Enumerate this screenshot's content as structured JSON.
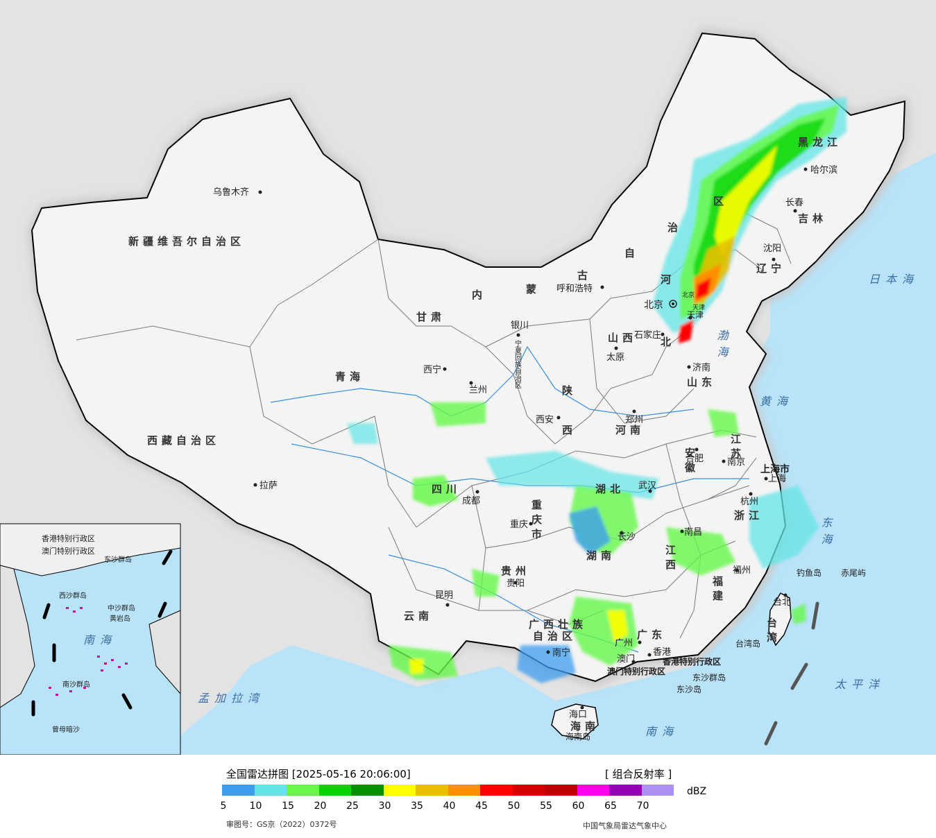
{
  "legend": {
    "title": "全国雷达拼图 [2025-05-16 20:06:00]",
    "product": "[ 组合反射率 ]",
    "unit": "dBZ",
    "review_no": "审图号：GS京（2022）0372号",
    "agency": "中国气象局雷达气象中心",
    "ticks": [
      "5",
      "10",
      "15",
      "20",
      "25",
      "30",
      "35",
      "40",
      "45",
      "50",
      "55",
      "60",
      "65",
      "70"
    ],
    "colors": [
      "#3d9eef",
      "#63e4e6",
      "#67f84a",
      "#08d400",
      "#039001",
      "#fefe00",
      "#e8c000",
      "#fe8f00",
      "#ff0000",
      "#d40000",
      "#bd0000",
      "#fe00f0",
      "#9600b4",
      "#ad90f0"
    ]
  },
  "provinces": {
    "xinjiang": "新疆维吾尔自治区",
    "xizang": "西藏自治区",
    "qinghai": "青海",
    "gansu": "甘肃",
    "neimenggu_1": "内",
    "neimenggu_2": "蒙",
    "neimenggu_3": "古",
    "neimenggu_4": "自",
    "neimenggu_5": "治",
    "neimenggu_6": "区",
    "heilongjiang": "黑龙江",
    "jilin": "吉林",
    "liaoning": "辽宁",
    "hebei_1": "河",
    "hebei_2": "北",
    "beijing": "北京",
    "tianjin": "天津",
    "shanxi": "山西",
    "shaanxi_1": "陕",
    "shaanxi_2": "西",
    "ningxia": "宁夏回族自治区",
    "shandong": "山东",
    "henan": "河南",
    "jiangsu": "江苏",
    "anhui": "安徽",
    "shanghai": "上海市",
    "hubei": "湖北",
    "sichuan": "四川",
    "chongqing": "重庆市",
    "zhejiang": "浙江",
    "jiangxi": "江西",
    "hunan": "湖南",
    "guizhou": "贵州",
    "yunnan": "云南",
    "fujian": "福建",
    "taiwan": "台湾",
    "guangxi_1": "广西壮族",
    "guangxi_2": "自治区",
    "guangdong": "广东",
    "hainan": "海南",
    "hk": "香港特别行政区",
    "macao": "澳门特别行政区"
  },
  "cities": {
    "urumqi": "乌鲁木齐",
    "lhasa": "拉萨",
    "xining": "西宁",
    "lanzhou": "兰州",
    "yinchuan": "银川",
    "hohhot": "呼和浩特",
    "harbin": "哈尔滨",
    "changchun": "长春",
    "shenyang": "沈阳",
    "beijing": "北京",
    "tianjin": "天津",
    "shijiazhuang": "石家庄",
    "taiyuan": "太原",
    "jinan": "济南",
    "zhengzhou": "郑州",
    "xian": "西安",
    "hefei": "合肥",
    "nanjing": "南京",
    "shanghai": "上海",
    "hangzhou": "杭州",
    "wuhan": "武汉",
    "chengdu": "成都",
    "chongqing": "重庆",
    "changsha": "长沙",
    "nanchang": "南昌",
    "fuzhou": "福州",
    "taipei": "台北",
    "guiyang": "贵阳",
    "kunming": "昆明",
    "nanning": "南宁",
    "guangzhou": "广州",
    "hongkong": "香港",
    "macao": "澳门",
    "haikou": "海口"
  },
  "seas": {
    "japan_sea": "日本海",
    "bohai": "渤海",
    "yellow_sea": "黄海",
    "east_sea": "东海",
    "pacific": "太平洋",
    "south_sea": "南海",
    "bengal": "孟加拉湾"
  },
  "islands": {
    "diaoyu": "钓鱼岛",
    "chiwei": "赤尾屿",
    "taiwan_island": "台湾岛",
    "hainan_island": "海南岛",
    "dongsha": "东沙群岛",
    "dongsha_dao": "东沙岛"
  },
  "inset": {
    "south_sea": "南海",
    "zhongsha": "中沙群岛",
    "huangyan": "黄岩岛",
    "nansha": "南沙群岛",
    "zengmu": "曾母暗沙",
    "xisha": "西沙群岛",
    "dongsha": "东沙群岛",
    "hk": "香港特别行政区",
    "macao": "澳门特别行政区"
  }
}
